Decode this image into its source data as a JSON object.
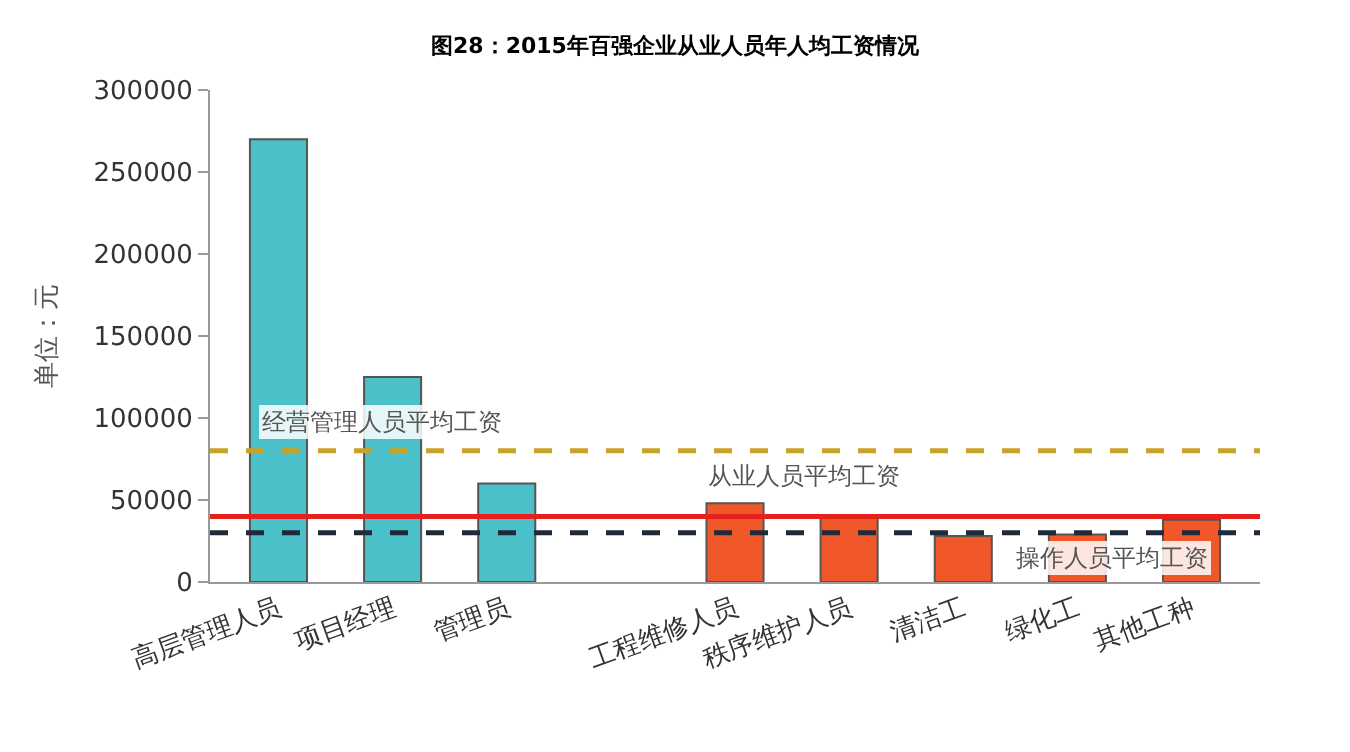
{
  "chart_data": {
    "type": "bar",
    "title": "图28：2015年百强企业从业人员年人均工资情况",
    "ylabel": "单位：元",
    "categories": [
      "高层管理人员",
      "项目经理",
      "管理员",
      null,
      "工程维修人员",
      "秩序维护人员",
      "清洁工",
      "绿化工",
      "其他工种"
    ],
    "values": [
      270000,
      125000,
      60000,
      null,
      48000,
      40000,
      28000,
      29000,
      38000
    ],
    "colors": [
      "#4bc0c8",
      "#4bc0c8",
      "#4bc0c8",
      null,
      "#f0582a",
      "#f0582a",
      "#f0582a",
      "#f0582a",
      "#f0582a"
    ],
    "ylim": [
      0,
      300000
    ],
    "yticks": [
      0,
      50000,
      100000,
      150000,
      200000,
      250000,
      300000
    ],
    "ref_lines": [
      {
        "axis": "y",
        "value": 80000,
        "label": "经营管理人员平均工资",
        "color": "#c9a227",
        "line_style": "dashed"
      },
      {
        "axis": "y",
        "value": 40000,
        "label": "从业人员平均工资",
        "color": "#e8201c",
        "line_style": "solid"
      },
      {
        "axis": "y",
        "value": 30000,
        "label": "操作人员平均工资",
        "color": "#1f2a3a",
        "line_style": "dashed"
      }
    ]
  }
}
